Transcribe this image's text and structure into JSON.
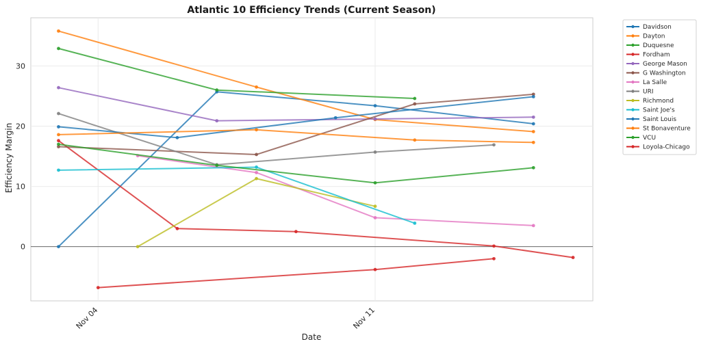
{
  "chart_data": {
    "type": "line",
    "title": "Atlantic 10 Efficiency Trends (Current Season)",
    "xlabel": "Date",
    "ylabel": "Efficiency Margin",
    "xlim": [
      -0.7,
      13.5
    ],
    "ylim": [
      -9,
      38
    ],
    "x_unit": "days since Nov 03",
    "x_ticks": [
      {
        "value": 1,
        "label": "Nov 04"
      },
      {
        "value": 8,
        "label": "Nov 11"
      }
    ],
    "y_ticks": [
      0,
      10,
      20,
      30
    ],
    "grid": true,
    "zero_line": true,
    "legend_position": "outside top-right",
    "series": [
      {
        "name": "Davidson",
        "color": "#1f77b4",
        "points": [
          [
            0,
            0.0
          ],
          [
            4,
            25.7
          ],
          [
            8,
            23.4
          ],
          [
            12,
            20.4
          ]
        ]
      },
      {
        "name": "Dayton",
        "color": "#ff7f0e",
        "points": [
          [
            0,
            35.8
          ],
          [
            5,
            26.5
          ],
          [
            8,
            21.1
          ],
          [
            12,
            19.1
          ]
        ]
      },
      {
        "name": "Duquesne",
        "color": "#2ca02c",
        "points": [
          [
            0,
            32.9
          ],
          [
            4,
            26.0
          ],
          [
            9,
            24.6
          ]
        ]
      },
      {
        "name": "Fordham",
        "color": "#d62728",
        "points": [
          [
            0,
            17.6
          ],
          [
            3,
            3.0
          ],
          [
            6,
            2.5
          ],
          [
            11,
            0.1
          ],
          [
            13,
            -1.8
          ]
        ]
      },
      {
        "name": "George Mason",
        "color": "#9467bd",
        "points": [
          [
            0,
            26.4
          ],
          [
            4,
            20.9
          ],
          [
            8,
            21.2
          ],
          [
            12,
            21.5
          ]
        ]
      },
      {
        "name": "G Washington",
        "color": "#8c564b",
        "points": [
          [
            0,
            16.6
          ],
          [
            5,
            15.3
          ],
          [
            9,
            23.7
          ],
          [
            12,
            25.3
          ]
        ]
      },
      {
        "name": "La Salle",
        "color": "#e377c2",
        "points": [
          [
            2,
            15.1
          ],
          [
            5,
            12.3
          ],
          [
            8,
            4.8
          ],
          [
            12,
            3.5
          ]
        ]
      },
      {
        "name": "URI",
        "color": "#7f7f7f",
        "points": [
          [
            0,
            22.1
          ],
          [
            4,
            13.6
          ],
          [
            8,
            15.7
          ],
          [
            11,
            16.9
          ]
        ]
      },
      {
        "name": "Richmond",
        "color": "#bcbd22",
        "points": [
          [
            2,
            0.0
          ],
          [
            5,
            11.3
          ],
          [
            8,
            6.7
          ]
        ]
      },
      {
        "name": "Saint Joe's",
        "color": "#17becf",
        "points": [
          [
            0,
            12.7
          ],
          [
            5,
            13.2
          ],
          [
            9,
            3.9
          ]
        ]
      },
      {
        "name": "Saint Louis",
        "color": "#1f77b4",
        "points": [
          [
            0,
            19.9
          ],
          [
            3,
            18.1
          ],
          [
            7,
            21.4
          ],
          [
            12,
            24.9
          ]
        ]
      },
      {
        "name": "St Bonaventure",
        "color": "#ff7f0e",
        "points": [
          [
            0,
            18.6
          ],
          [
            5,
            19.4
          ],
          [
            9,
            17.7
          ],
          [
            12,
            17.3
          ]
        ]
      },
      {
        "name": "VCU",
        "color": "#2ca02c",
        "points": [
          [
            0,
            17.0
          ],
          [
            4,
            13.5
          ],
          [
            8,
            10.6
          ],
          [
            12,
            13.1
          ]
        ]
      },
      {
        "name": "Loyola-Chicago",
        "color": "#d62728",
        "points": [
          [
            1,
            -6.8
          ],
          [
            8,
            -3.8
          ],
          [
            11,
            -2.0
          ]
        ]
      }
    ]
  }
}
